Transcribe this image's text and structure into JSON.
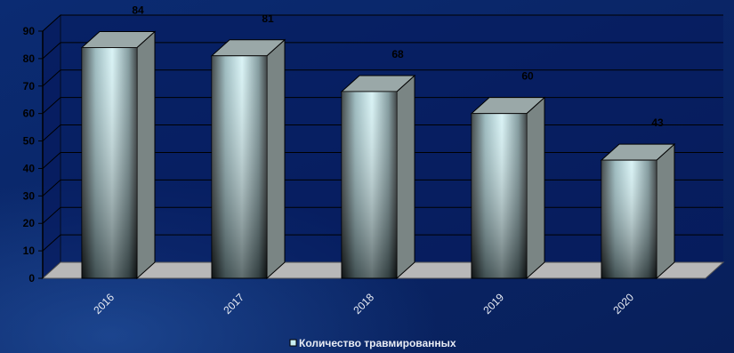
{
  "chart_data": {
    "type": "bar",
    "categories": [
      "2016",
      "2017",
      "2018",
      "2019",
      "2020"
    ],
    "series": [
      {
        "name": "Количество травмированных",
        "values": [
          84,
          81,
          68,
          60,
          43
        ]
      }
    ],
    "yticks": [
      0,
      10,
      20,
      30,
      40,
      50,
      60,
      70,
      80,
      90
    ],
    "ylim": [
      0,
      90
    ],
    "grid": true,
    "legend": "bottom",
    "colors": {
      "background": "#0a2a6e",
      "plot_wall": "#06195c",
      "grid": "#000000",
      "floor": "#b8b8b8",
      "bar_light": "#c9eef2",
      "bar_dark": "#1a1f22",
      "bar_side": "#7a8584",
      "bar_top": "#9aa8a8"
    }
  }
}
